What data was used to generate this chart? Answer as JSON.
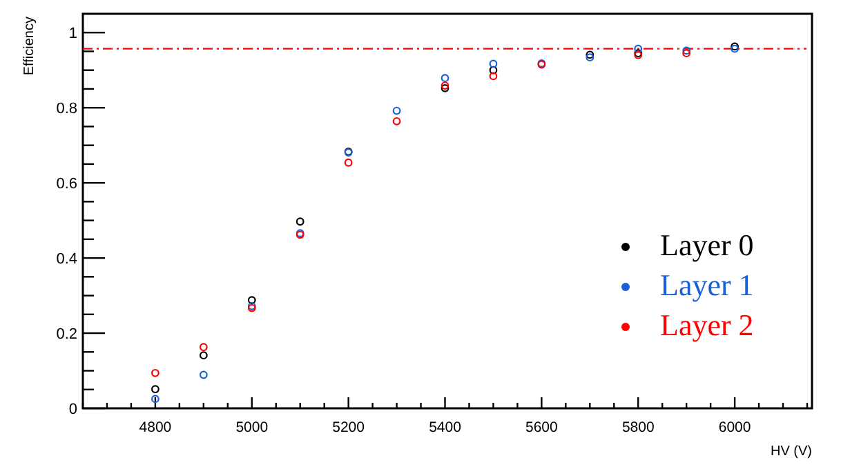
{
  "chart_data": {
    "type": "scatter",
    "xlabel": "HV (V)",
    "ylabel": "Efficiency",
    "x": [
      4800,
      4900,
      5000,
      5100,
      5200,
      5300,
      5400,
      5500,
      5600,
      5700,
      5800,
      5900,
      6000
    ],
    "series": [
      {
        "name": "Layer 0",
        "color": "#000000",
        "values": [
          0.051,
          0.141,
          0.288,
          0.497,
          0.683,
          null,
          0.852,
          0.9,
          null,
          0.941,
          0.945,
          null,
          0.963
        ]
      },
      {
        "name": "Layer 1",
        "color": "#1a5fd6",
        "values": [
          0.025,
          0.089,
          0.272,
          0.466,
          0.681,
          0.792,
          0.879,
          0.917,
          0.918,
          0.934,
          0.957,
          0.952,
          0.957
        ]
      },
      {
        "name": "Layer 2",
        "color": "#ff0000",
        "values": [
          0.094,
          0.163,
          0.267,
          0.462,
          0.654,
          0.764,
          0.859,
          0.884,
          0.915,
          null,
          0.94,
          0.945,
          null
        ]
      }
    ],
    "xlim": [
      4650,
      6160
    ],
    "ylim": [
      0,
      1.05
    ],
    "xticks": [
      {
        "value": 4650,
        "label": null
      },
      {
        "value": 4700,
        "label": null
      },
      {
        "value": 4750,
        "label": null
      },
      4800,
      {
        "value": 4850,
        "label": null
      },
      {
        "value": 4900,
        "label": null
      },
      {
        "value": 4950,
        "label": null
      },
      5000,
      {
        "value": 5050,
        "label": null
      },
      {
        "value": 5100,
        "label": null
      },
      {
        "value": 5150,
        "label": null
      },
      5200,
      {
        "value": 5250,
        "label": null
      },
      {
        "value": 5300,
        "label": null
      },
      {
        "value": 5350,
        "label": null
      },
      5400,
      {
        "value": 5450,
        "label": null
      },
      {
        "value": 5500,
        "label": null
      },
      {
        "value": 5550,
        "label": null
      },
      5600,
      {
        "value": 5650,
        "label": null
      },
      {
        "value": 5700,
        "label": null
      },
      {
        "value": 5750,
        "label": null
      },
      5800,
      {
        "value": 5850,
        "label": null
      },
      {
        "value": 5900,
        "label": null
      },
      {
        "value": 5950,
        "label": null
      },
      6000,
      {
        "value": 6050,
        "label": null
      },
      {
        "value": 6100,
        "label": null
      },
      {
        "value": 6150,
        "label": null
      }
    ],
    "yticks": [
      0,
      {
        "value": 0.05,
        "label": null
      },
      {
        "value": 0.1,
        "label": null
      },
      {
        "value": 0.15,
        "label": null
      },
      0.2,
      {
        "value": 0.25,
        "label": null
      },
      {
        "value": 0.3,
        "label": null
      },
      {
        "value": 0.35,
        "label": null
      },
      0.4,
      {
        "value": 0.45,
        "label": null
      },
      {
        "value": 0.5,
        "label": null
      },
      {
        "value": 0.55,
        "label": null
      },
      0.6,
      {
        "value": 0.65,
        "label": null
      },
      {
        "value": 0.7,
        "label": null
      },
      {
        "value": 0.75,
        "label": null
      },
      0.8,
      {
        "value": 0.85,
        "label": null
      },
      {
        "value": 0.9,
        "label": null
      },
      {
        "value": 0.95,
        "label": null
      },
      1
    ],
    "ref_lines": [
      {
        "axis": "y",
        "value": 0.957,
        "color": "#ff0000",
        "line_style": "dashed"
      }
    ],
    "marker": "circle",
    "legend": "right",
    "grid": false
  }
}
